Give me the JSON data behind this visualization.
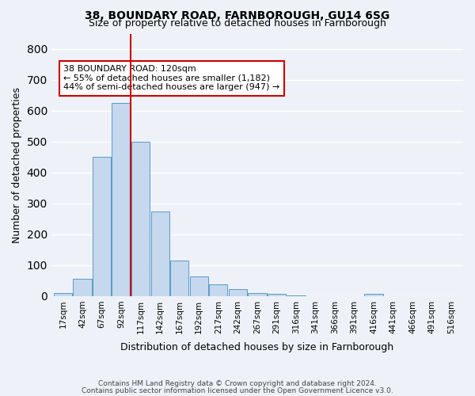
{
  "title1": "38, BOUNDARY ROAD, FARNBOROUGH, GU14 6SG",
  "title2": "Size of property relative to detached houses in Farnborough",
  "xlabel": "Distribution of detached houses by size in Farnborough",
  "ylabel": "Number of detached properties",
  "footnote1": "Contains HM Land Registry data © Crown copyright and database right 2024.",
  "footnote2": "Contains public sector information licensed under the Open Government Licence v3.0.",
  "bin_labels": [
    "17sqm",
    "42sqm",
    "67sqm",
    "92sqm",
    "117sqm",
    "142sqm",
    "167sqm",
    "192sqm",
    "217sqm",
    "242sqm",
    "267sqm",
    "291sqm",
    "316sqm",
    "341sqm",
    "366sqm",
    "391sqm",
    "416sqm",
    "441sqm",
    "466sqm",
    "491sqm",
    "516sqm"
  ],
  "bar_values": [
    10,
    57,
    450,
    625,
    500,
    275,
    115,
    65,
    37,
    22,
    10,
    7,
    2,
    0,
    0,
    0,
    7,
    0,
    0,
    0,
    0
  ],
  "bar_color": "#c5d8ed",
  "bar_edge_color": "#5a9ac8",
  "background_color": "#eef2f8",
  "grid_color": "#ffffff",
  "annotation_box_color": "#ffffff",
  "annotation_border_color": "#cc0000",
  "vline_color": "#cc0000",
  "vline_x_index": 4,
  "annotation_title": "38 BOUNDARY ROAD: 120sqm",
  "annotation_line1": "← 55% of detached houses are smaller (1,182)",
  "annotation_line2": "44% of semi-detached houses are larger (947) →",
  "ylim": [
    0,
    850
  ],
  "yticks": [
    0,
    100,
    200,
    300,
    400,
    500,
    600,
    700,
    800
  ]
}
